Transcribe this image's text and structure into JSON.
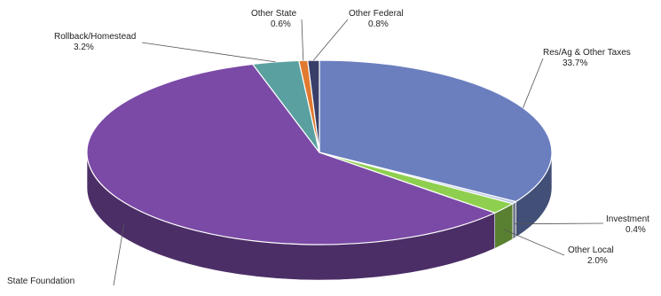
{
  "chart_data": {
    "type": "pie",
    "style": "3d-exploded-ring",
    "title": "",
    "slices": [
      {
        "name": "Res/Ag & Other Taxes",
        "value": 33.7,
        "value_label": "33.7%",
        "color": "#6b7fbf"
      },
      {
        "name": "Investment",
        "value": 0.4,
        "value_label": "0.4%",
        "color": "#b9c6e2"
      },
      {
        "name": "Other Local",
        "value": 2.0,
        "value_label": "2.0%",
        "color": "#8fcf4f"
      },
      {
        "name": "State Foundation",
        "value": 58.5,
        "value_label": "",
        "color": "#7a4aa6"
      },
      {
        "name": "Rollback/Homestead",
        "value": 3.2,
        "value_label": "3.2%",
        "color": "#5aa0a0"
      },
      {
        "name": "Other State",
        "value": 0.6,
        "value_label": "0.6%",
        "color": "#e07a30"
      },
      {
        "name": "Other Federal",
        "value": 0.8,
        "value_label": "0.8%",
        "color": "#3a3f6a"
      }
    ]
  }
}
